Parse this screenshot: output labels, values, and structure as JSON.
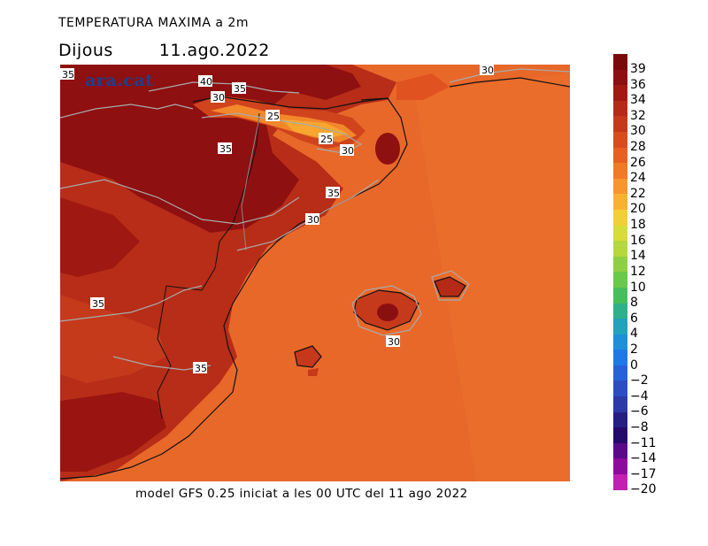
{
  "header": {
    "title": "TEMPERATURA MAXIMA a 2m",
    "day": "Dijous",
    "date": "11.ago.2022"
  },
  "footer": {
    "caption": "model GFS 0.25 iniciat a les 00 UTC del 11 ago 2022"
  },
  "watermark": "ara.cat",
  "colorbar": {
    "labels": [
      "39",
      "36",
      "34",
      "32",
      "30",
      "28",
      "26",
      "24",
      "22",
      "20",
      "18",
      "16",
      "14",
      "12",
      "10",
      "8",
      "6",
      "4",
      "2",
      "0",
      "−2",
      "−4",
      "−6",
      "−8",
      "−11",
      "−14",
      "−17",
      "−20"
    ],
    "colors": [
      "#7a0a0a",
      "#8c1010",
      "#a11a12",
      "#b42a16",
      "#c5391a",
      "#d74d1e",
      "#e85f22",
      "#f07a28",
      "#f7962e",
      "#f9b133",
      "#f1cf37",
      "#d6dc3a",
      "#b4d83e",
      "#8fcf43",
      "#6ac84b",
      "#47bd5c",
      "#2fb088",
      "#22a2bb",
      "#1f8fd8",
      "#1f78e6",
      "#2761d6",
      "#2c4dc2",
      "#2c3aa6",
      "#251f82",
      "#240a6a",
      "#5a0a88",
      "#8c0a9c",
      "#c021b0"
    ]
  },
  "contour_labels": [
    "35",
    "40",
    "35",
    "30",
    "25",
    "25",
    "30",
    "35",
    "35",
    "35",
    "30",
    "30",
    "35",
    "30"
  ]
}
